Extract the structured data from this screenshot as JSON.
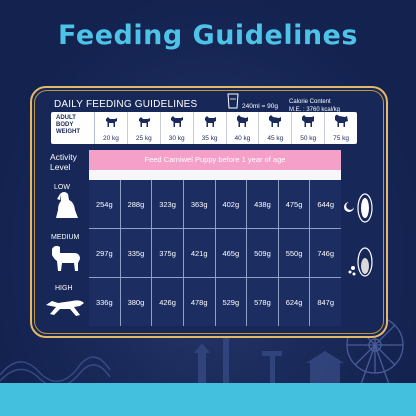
{
  "title": "Feeding Guidelines",
  "card": {
    "heading": "DAILY FEEDING GUIDELINES",
    "cup_text": "240ml = 90g",
    "calorie_line1": "Calorie Content",
    "calorie_line2": "M.E. : 3760 kcal/kg"
  },
  "weights": {
    "label_line1": "ADULT",
    "label_line2": "BODY",
    "label_line3": "WEIGHT",
    "items": [
      {
        "label": "20 kg",
        "icon": "dog-icon"
      },
      {
        "label": "25 kg",
        "icon": "dog-icon"
      },
      {
        "label": "30 kg",
        "icon": "dog-icon"
      },
      {
        "label": "35 kg",
        "icon": "dog-icon"
      },
      {
        "label": "40 kg",
        "icon": "dog-icon"
      },
      {
        "label": "45 kg",
        "icon": "dog-icon"
      },
      {
        "label": "50 kg",
        "icon": "dog-icon"
      },
      {
        "label": "75 kg",
        "icon": "dog-icon"
      }
    ]
  },
  "activity": {
    "label_line1": "Activity",
    "label_line2": "Level",
    "banner": "Feed Carniwel Puppy before 1 year of age",
    "levels": [
      {
        "name": "LOW",
        "values": [
          "254g",
          "288g",
          "323g",
          "363g",
          "402g",
          "438g",
          "475g",
          "644g"
        ]
      },
      {
        "name": "MEDIUM",
        "values": [
          "297g",
          "335g",
          "375g",
          "421g",
          "465g",
          "509g",
          "550g",
          "746g"
        ]
      },
      {
        "name": "HIGH",
        "values": [
          "336g",
          "380g",
          "426g",
          "478g",
          "529g",
          "578g",
          "624g",
          "847g"
        ]
      }
    ]
  },
  "colors": {
    "background": "#13224f",
    "title": "#4ec3e8",
    "banner": "#f4a0c9",
    "card_border": "#e3b866",
    "bottom_bar": "#43c0dd"
  }
}
